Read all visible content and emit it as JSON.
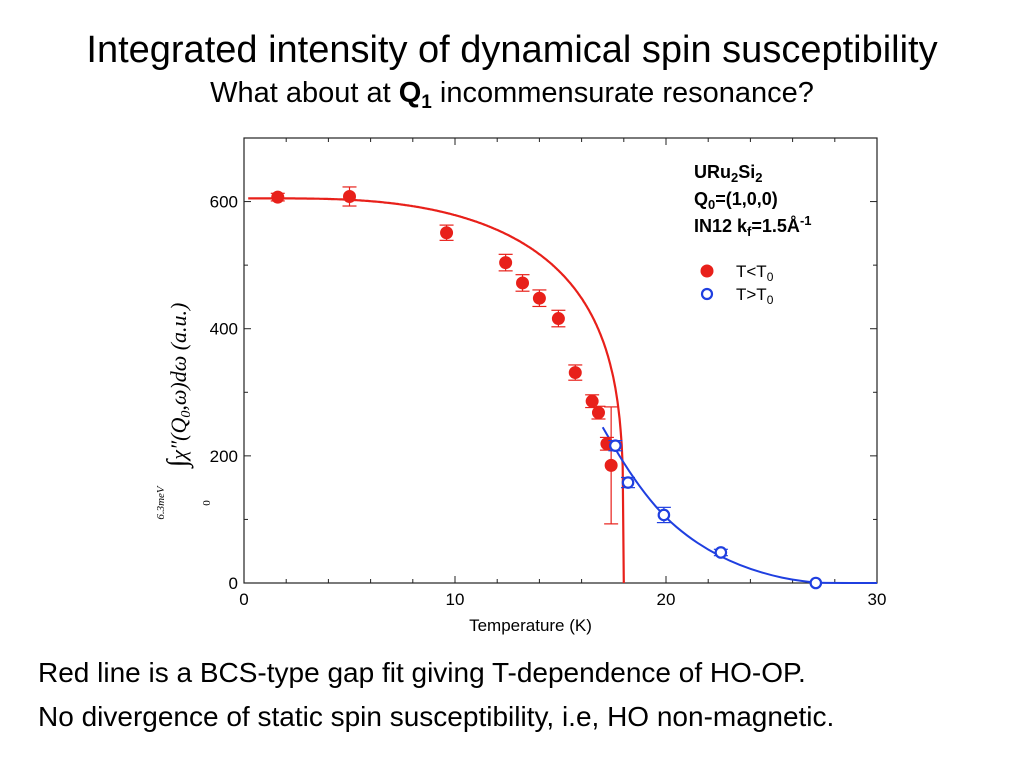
{
  "slide": {
    "title": "Integrated intensity of dynamical spin susceptibility",
    "subtitle_pre": "What about at ",
    "subtitle_bold": "Q",
    "subtitle_sub": "1",
    "subtitle_post": " incommensurate resonance?",
    "caption_line1": "Red line is a BCS-type gap fit giving T-dependence of HO-OP.",
    "caption_line2": "No divergence of static spin susceptibility, i.e, HO non-magnetic."
  },
  "chart_data": {
    "type": "scatter",
    "xlabel": "Temperature (K)",
    "ylabel": "∫₀^6.3meV χ″(Q₀,ω)dω (a.u.)",
    "xlim": [
      0,
      30
    ],
    "ylim": [
      0,
      700
    ],
    "xticks": [
      0,
      10,
      20,
      30
    ],
    "yticks": [
      0,
      200,
      400,
      600
    ],
    "grid": false,
    "annotation_lines": [
      "URu2Si2",
      "Q0=(1,0,0)",
      "IN12 kf=1.5Å-1"
    ],
    "legend_position": "top-right",
    "series": [
      {
        "name": "T<T0",
        "color": "#e8201a",
        "marker": "filled-circle",
        "points": [
          {
            "x": 1.6,
            "y": 607,
            "err": 6
          },
          {
            "x": 5.0,
            "y": 608,
            "err": 15
          },
          {
            "x": 9.6,
            "y": 551,
            "err": 12
          },
          {
            "x": 12.4,
            "y": 504,
            "err": 13
          },
          {
            "x": 13.2,
            "y": 472,
            "err": 13
          },
          {
            "x": 14.0,
            "y": 448,
            "err": 13
          },
          {
            "x": 14.9,
            "y": 416,
            "err": 13
          },
          {
            "x": 15.7,
            "y": 331,
            "err": 12
          },
          {
            "x": 16.5,
            "y": 286,
            "err": 10
          },
          {
            "x": 16.8,
            "y": 268,
            "err": 10
          },
          {
            "x": 17.2,
            "y": 219,
            "err": 10
          },
          {
            "x": 17.4,
            "y": 185,
            "err": 92
          }
        ]
      },
      {
        "name": "T>T0",
        "color": "#1f3fe0",
        "marker": "open-circle",
        "points": [
          {
            "x": 17.6,
            "y": 216,
            "err": 8
          },
          {
            "x": 18.2,
            "y": 158,
            "err": 8
          },
          {
            "x": 19.9,
            "y": 107,
            "err": 12
          },
          {
            "x": 22.6,
            "y": 48,
            "err": 5
          },
          {
            "x": 27.1,
            "y": 0,
            "err": 0
          }
        ]
      }
    ],
    "fits": [
      {
        "name": "BCS-type gap fit",
        "color": "#e8201a",
        "form": "A*sqrt(tanh(1.74*sqrt(Tc/T-1)))",
        "A": 605,
        "Tc": 18.0
      },
      {
        "name": "high-T fit",
        "color": "#1f3fe0",
        "x": [
          17.0,
          18.0,
          19.0,
          20.0,
          21.0,
          22.0,
          23.0,
          24.0,
          25.0,
          26.0,
          27.0,
          27.5,
          30.0
        ],
        "y": [
          245,
          188,
          140,
          102,
          74,
          52,
          35,
          22,
          12,
          5,
          1,
          0,
          0
        ]
      }
    ]
  }
}
